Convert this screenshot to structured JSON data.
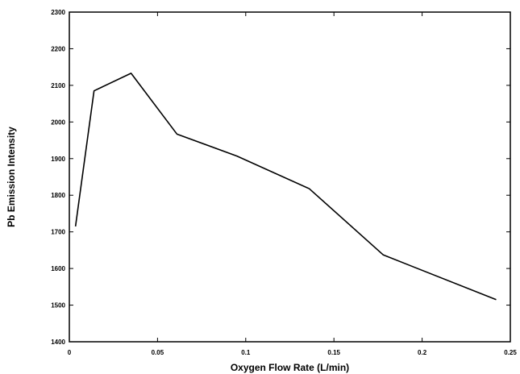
{
  "chart_data": {
    "type": "line",
    "title": "",
    "xlabel": "Oxygen Flow Rate (L/min)",
    "ylabel": "Pb Emission Intensity",
    "xlim": [
      0,
      0.25
    ],
    "ylim": [
      1400,
      2300
    ],
    "grid": false,
    "x_ticks": [
      0,
      0.05,
      0.1,
      0.15,
      0.2,
      0.25
    ],
    "x_tick_labels": [
      "0",
      "0.05",
      "0.1",
      "0.15",
      "0.2",
      "0.25"
    ],
    "y_ticks": [
      1400,
      1500,
      1600,
      1700,
      1800,
      1900,
      2000,
      2100,
      2200,
      2300
    ],
    "y_tick_labels": [
      "1400",
      "1500",
      "1600",
      "1700",
      "1800",
      "1900",
      "2000",
      "2100",
      "2200",
      "2300"
    ],
    "series": [
      {
        "x": [
          0.0035,
          0.014,
          0.035,
          0.061,
          0.095,
          0.136,
          0.178,
          0.242
        ],
        "y": [
          1715,
          2085,
          2133,
          1967,
          1907,
          1818,
          1637,
          1515
        ]
      }
    ],
    "colors": {
      "line": "#000000",
      "axes": "#000000",
      "background": "#ffffff"
    }
  }
}
